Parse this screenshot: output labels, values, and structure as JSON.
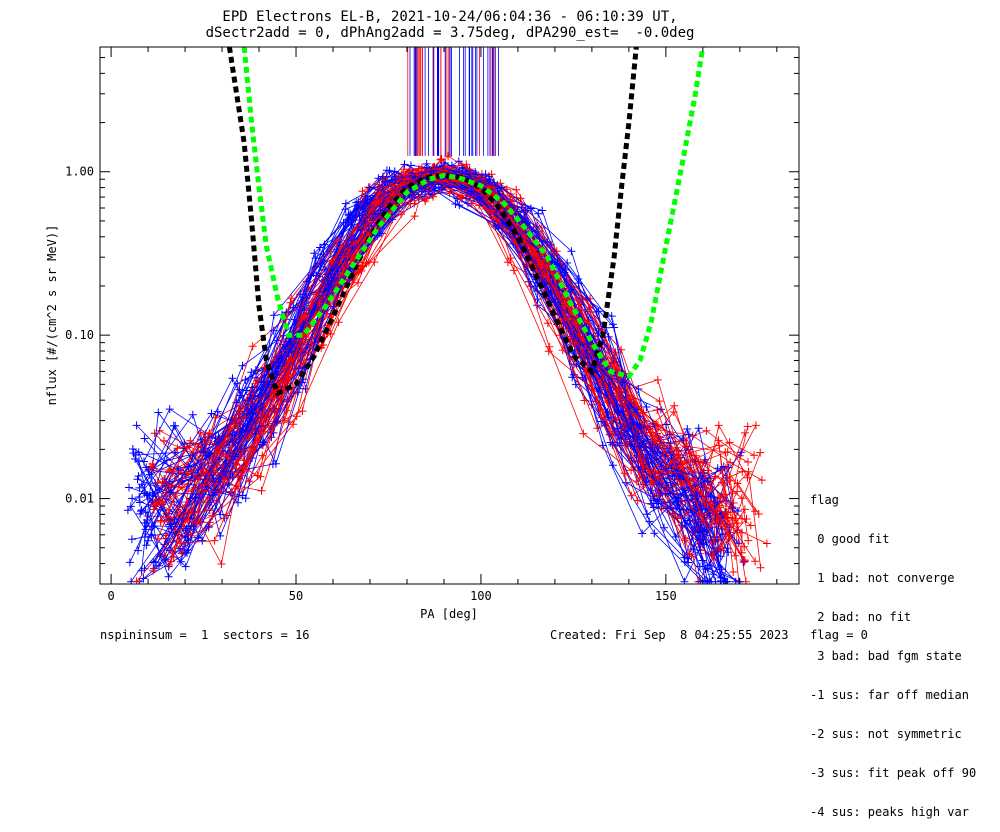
{
  "title": {
    "line1": "EPD Electrons EL-B, 2021-10-24/06:04:36 - 06:10:39 UT,",
    "line2": "dSectr2add = 0, dPhAng2add = 3.75deg, dPA290_est=  -0.0deg"
  },
  "legend": {
    "heading": "flag",
    "items": [
      " 0 good fit",
      " 1 bad: not converge",
      " 2 bad: no fit",
      " 3 bad: bad fgm state",
      "-1 sus: far off median",
      "-2 sus: not symmetric",
      "-3 sus: fit peak off 90",
      "-4 sus: peaks high var"
    ]
  },
  "footer": {
    "left": "nspininsum =  1  sectors = 16",
    "right": "Created: Fri Sep  8 04:25:55 2023   flag = 0"
  },
  "colors": {
    "series_red": "#ff0000",
    "series_blue": "#0000ff",
    "fit_black": "#000000",
    "fit_green": "#00ff00"
  },
  "chart_data": {
    "type": "line",
    "xlabel": "PA [deg]",
    "ylabel": "nflux [#/(cm^2 s sr MeV)]",
    "xlim": [
      -3,
      186
    ],
    "ylim": [
      0.003,
      5.8
    ],
    "yscale": "log",
    "xticks": [
      0,
      50,
      100,
      150
    ],
    "xtick_labels": [
      "0",
      "50",
      "100",
      "150"
    ],
    "yticks": [
      0.01,
      0.1,
      1.0
    ],
    "ytick_labels": [
      "0.01",
      "0.10",
      "1.00"
    ],
    "grid": false,
    "peak_pa": 90,
    "peak_flux": 0.95,
    "series": [
      {
        "color": "red",
        "curves": 45,
        "x": [
          14,
          25,
          35,
          45,
          55,
          65,
          75,
          82,
          90,
          98,
          105,
          115,
          125,
          135,
          145,
          155,
          165,
          170
        ],
        "values": [
          0.008,
          0.012,
          0.02,
          0.045,
          0.12,
          0.3,
          0.65,
          0.85,
          0.95,
          0.85,
          0.6,
          0.3,
          0.12,
          0.045,
          0.02,
          0.012,
          0.009,
          0.008
        ]
      },
      {
        "color": "blue",
        "curves": 60,
        "x": [
          10,
          20,
          30,
          40,
          50,
          60,
          70,
          80,
          90,
          100,
          110,
          120,
          130,
          140,
          150,
          160,
          165
        ],
        "values": [
          0.009,
          0.011,
          0.016,
          0.035,
          0.09,
          0.25,
          0.55,
          0.85,
          0.95,
          0.8,
          0.5,
          0.22,
          0.08,
          0.03,
          0.014,
          0.007,
          0.005
        ]
      },
      {
        "name": "",
        "color": "black",
        "style": "dashed",
        "x": [
          32,
          36,
          38,
          40,
          42,
          45,
          50,
          55,
          60,
          65,
          70,
          75,
          80,
          85,
          90,
          95,
          100,
          105,
          110,
          115,
          120,
          125,
          130,
          133,
          136,
          138,
          140,
          142
        ],
        "values": [
          5.8,
          1.5,
          0.5,
          0.15,
          0.07,
          0.044,
          0.05,
          0.075,
          0.13,
          0.23,
          0.4,
          0.6,
          0.8,
          0.92,
          0.95,
          0.92,
          0.8,
          0.6,
          0.4,
          0.23,
          0.13,
          0.075,
          0.06,
          0.1,
          0.3,
          0.8,
          2.0,
          5.8
        ]
      },
      {
        "name": "",
        "color": "green",
        "style": "dashed",
        "x": [
          36,
          38,
          40,
          42,
          45,
          48,
          52,
          58,
          65,
          72,
          80,
          86,
          90,
          94,
          100,
          106,
          112,
          118,
          124,
          130,
          135,
          140,
          143,
          146,
          150,
          154,
          158,
          160
        ],
        "values": [
          5.8,
          2.0,
          0.8,
          0.35,
          0.17,
          0.1,
          0.1,
          0.15,
          0.26,
          0.45,
          0.75,
          0.9,
          0.95,
          0.92,
          0.82,
          0.65,
          0.45,
          0.3,
          0.16,
          0.09,
          0.06,
          0.056,
          0.07,
          0.12,
          0.35,
          1.0,
          3.0,
          5.8
        ]
      }
    ]
  }
}
